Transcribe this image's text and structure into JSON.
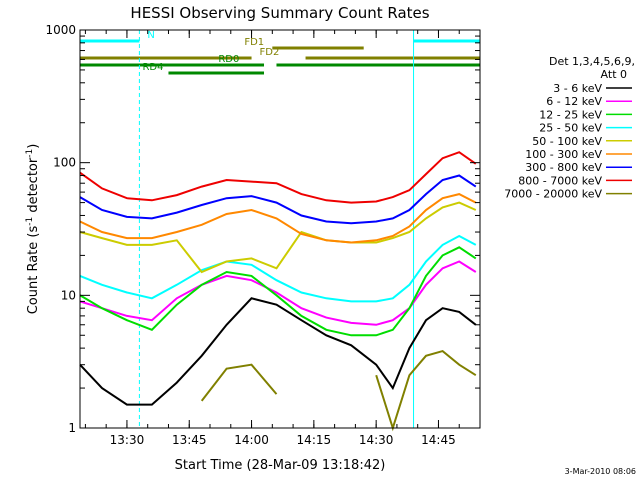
{
  "chart_data": {
    "type": "line",
    "title": "HESSI Observing Summary Count Rates",
    "xlabel": "Start Time (28-Mar-09 13:18:42)",
    "ylabel_main": "Count Rate (s",
    "ylabel_sup1": "-1",
    "ylabel_mid": " detector",
    "ylabel_sup2": "-1",
    "ylabel_end": ")",
    "y_scale": "log",
    "xlim": [
      "13:18:42",
      "14:55:00"
    ],
    "ylim": [
      1,
      1000
    ],
    "x_ticks": [
      "13:30",
      "13:45",
      "14:00",
      "14:15",
      "14:30",
      "14:45"
    ],
    "y_ticks": [
      "1",
      "10",
      "100",
      "1000"
    ],
    "legend_header_1": "Det 1,3,4,5,6,9,",
    "legend_header_2": "Att 0",
    "legend_position": "right",
    "series": [
      {
        "name": "3 - 6 keV",
        "color": "#000000",
        "times": [
          "13:18:42",
          "13:24",
          "13:30",
          "13:36",
          "13:42",
          "13:48",
          "13:54",
          "14:00",
          "14:06",
          "14:12",
          "14:18",
          "14:24",
          "14:30",
          "14:34",
          "14:38",
          "14:42",
          "14:46",
          "14:50",
          "14:54"
        ],
        "values": [
          3.0,
          2.0,
          1.5,
          1.5,
          2.2,
          3.5,
          6.0,
          9.5,
          8.5,
          6.5,
          5.0,
          4.2,
          3.0,
          2.0,
          4.0,
          6.5,
          8.0,
          7.5,
          6.0
        ]
      },
      {
        "name": "6 - 12 keV",
        "color": "#ff00ff",
        "times": [
          "13:18:42",
          "13:24",
          "13:30",
          "13:36",
          "13:42",
          "13:48",
          "13:54",
          "14:00",
          "14:06",
          "14:12",
          "14:18",
          "14:24",
          "14:30",
          "14:34",
          "14:38",
          "14:42",
          "14:46",
          "14:50",
          "14:54"
        ],
        "values": [
          9.0,
          8.0,
          7.0,
          6.5,
          9.5,
          12.0,
          14.0,
          13.0,
          10.5,
          8.0,
          6.8,
          6.2,
          6.0,
          6.5,
          8.0,
          12.0,
          16.0,
          18.0,
          15.0
        ]
      },
      {
        "name": "12 - 25 keV",
        "color": "#00dd00",
        "times": [
          "13:18:42",
          "13:24",
          "13:30",
          "13:36",
          "13:42",
          "13:48",
          "13:54",
          "14:00",
          "14:06",
          "14:12",
          "14:18",
          "14:24",
          "14:30",
          "14:34",
          "14:38",
          "14:42",
          "14:46",
          "14:50",
          "14:54"
        ],
        "values": [
          10.0,
          8.0,
          6.5,
          5.5,
          8.5,
          12.0,
          15.0,
          14.0,
          10.0,
          7.0,
          5.5,
          5.0,
          5.0,
          5.5,
          8.0,
          14.0,
          20.0,
          23.0,
          19.0
        ]
      },
      {
        "name": "25 - 50 keV",
        "color": "#00ffff",
        "times": [
          "13:18:42",
          "13:24",
          "13:30",
          "13:36",
          "13:42",
          "13:48",
          "13:54",
          "14:00",
          "14:06",
          "14:12",
          "14:18",
          "14:24",
          "14:30",
          "14:34",
          "14:38",
          "14:42",
          "14:46",
          "14:50",
          "14:54"
        ],
        "values": [
          14.0,
          12.0,
          10.5,
          9.5,
          12.0,
          15.5,
          18.0,
          17.0,
          13.0,
          10.5,
          9.5,
          9.0,
          9.0,
          9.5,
          12.0,
          18.0,
          24.0,
          28.0,
          24.0
        ]
      },
      {
        "name": "50 - 100 keV",
        "color": "#cccc00",
        "times": [
          "13:18:42",
          "13:24",
          "13:30",
          "13:36",
          "13:42",
          "13:48",
          "13:54",
          "14:00",
          "14:06",
          "14:12",
          "14:18",
          "14:24",
          "14:30",
          "14:34",
          "14:38",
          "14:42",
          "14:46",
          "14:50",
          "14:54"
        ],
        "values": [
          30.0,
          27.0,
          24.0,
          24.0,
          26.0,
          15.0,
          18.0,
          19.0,
          16.0,
          30.0,
          26.0,
          25.0,
          25.0,
          27.0,
          30.0,
          38.0,
          46.0,
          50.0,
          44.0
        ]
      },
      {
        "name": "100 - 300 keV",
        "color": "#ff8800",
        "times": [
          "13:18:42",
          "13:24",
          "13:30",
          "13:36",
          "13:42",
          "13:48",
          "13:54",
          "14:00",
          "14:06",
          "14:12",
          "14:18",
          "14:24",
          "14:30",
          "14:34",
          "14:38",
          "14:42",
          "14:46",
          "14:50",
          "14:54"
        ],
        "values": [
          36.0,
          30.0,
          27.0,
          27.0,
          30.0,
          34.0,
          41.0,
          44.0,
          38.0,
          29.0,
          26.0,
          25.0,
          26.0,
          28.0,
          33.0,
          44.0,
          54.0,
          58.0,
          50.0
        ]
      },
      {
        "name": "300 - 800 keV",
        "color": "#0000ff",
        "times": [
          "13:18:42",
          "13:24",
          "13:30",
          "13:36",
          "13:42",
          "13:48",
          "13:54",
          "14:00",
          "14:06",
          "14:12",
          "14:18",
          "14:24",
          "14:30",
          "14:34",
          "14:38",
          "14:42",
          "14:46",
          "14:50",
          "14:54"
        ],
        "values": [
          55.0,
          44.0,
          39.0,
          38.0,
          42.0,
          48.0,
          54.0,
          56.0,
          50.0,
          40.0,
          36.0,
          35.0,
          36.0,
          38.0,
          44.0,
          58.0,
          74.0,
          80.0,
          66.0
        ]
      },
      {
        "name": "800 - 7000 keV",
        "color": "#ee0000",
        "times": [
          "13:18:42",
          "13:24",
          "13:30",
          "13:36",
          "13:42",
          "13:48",
          "13:54",
          "14:00",
          "14:06",
          "14:12",
          "14:18",
          "14:24",
          "14:30",
          "14:34",
          "14:38",
          "14:42",
          "14:46",
          "14:50",
          "14:54"
        ],
        "values": [
          84.0,
          64.0,
          54.0,
          52.0,
          57.0,
          66.0,
          74.0,
          72.0,
          70.0,
          58.0,
          52.0,
          50.0,
          51.0,
          55.0,
          62.0,
          82.0,
          108.0,
          120.0,
          98.0
        ]
      },
      {
        "name": "7000 - 20000 keV",
        "color": "#808000",
        "times": [
          "13:18:42",
          "13:24",
          "13:30",
          "13:36",
          "13:42",
          "13:48",
          "13:54",
          "14:00",
          "14:06",
          "14:12",
          "14:18",
          "14:24",
          "14:30",
          "14:34",
          "14:38",
          "14:42",
          "14:46",
          "14:50",
          "14:54"
        ],
        "values": [
          null,
          null,
          null,
          null,
          null,
          1.6,
          2.8,
          3.0,
          1.8,
          null,
          null,
          null,
          2.5,
          1.0,
          2.5,
          3.5,
          3.8,
          3.0,
          2.5
        ]
      }
    ],
    "flag_bars": [
      {
        "label": "N",
        "color": "#00ffff",
        "segments": [
          [
            "13:18:42",
            "13:33"
          ],
          [
            "14:39",
            "14:55"
          ]
        ]
      },
      {
        "label": "FD1",
        "color": "#808000",
        "segments": [
          [
            "14:05",
            "14:27"
          ]
        ]
      },
      {
        "label": "FD2",
        "color": "#808000",
        "segments": [
          [
            "13:18:42",
            "14:00"
          ],
          [
            "14:13",
            "14:55"
          ]
        ]
      },
      {
        "label": "RD0",
        "color": "#008800",
        "segments": [
          [
            "13:18:42",
            "14:03"
          ],
          [
            "14:06",
            "14:55"
          ]
        ]
      },
      {
        "label": "RD4",
        "color": "#008800",
        "segments": [
          [
            "13:40",
            "14:03"
          ]
        ]
      }
    ]
  },
  "footer": {
    "timestamp": "3-Mar-2010 08:06"
  }
}
